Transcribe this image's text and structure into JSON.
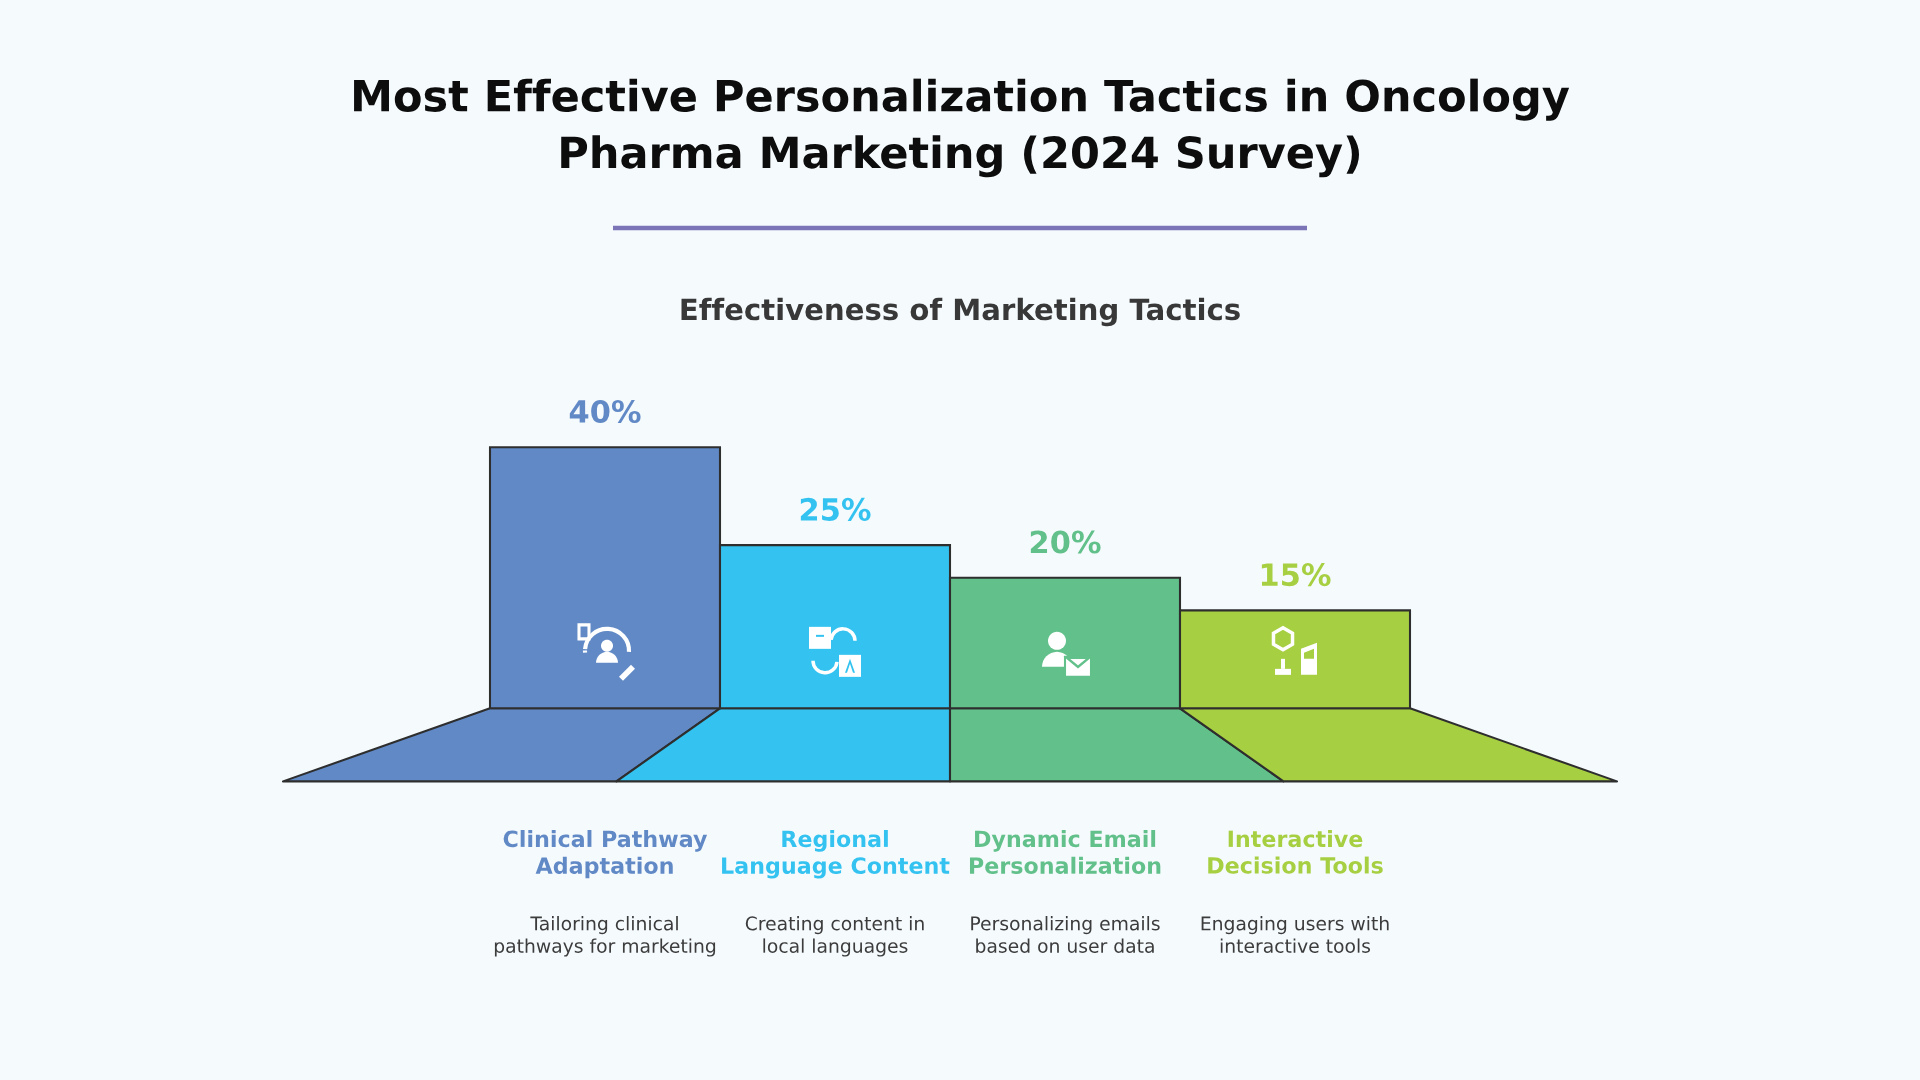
{
  "chart_data": {
    "type": "bar",
    "title": "Most Effective Personalization Tactics in Oncology Pharma Marketing (2024 Survey)",
    "subtitle": "Effectiveness of Marketing Tactics",
    "categories": [
      "Clinical Pathway Adaptation",
      "Regional Language Content",
      "Dynamic Email Personalization",
      "Interactive Decision Tools"
    ],
    "values": [
      40,
      25,
      20,
      15
    ],
    "colors": [
      "#6089c6",
      "#34c3f0",
      "#62c08a",
      "#a7cf42"
    ],
    "value_labels": [
      "40%",
      "25%",
      "20%",
      "15%"
    ],
    "annotations": [
      "Tailoring clinical pathways for marketing",
      "Creating content in local languages",
      "Personalizing emails based on user data",
      "Engaging users with interactive tools"
    ],
    "tick_labels": false
  }
}
